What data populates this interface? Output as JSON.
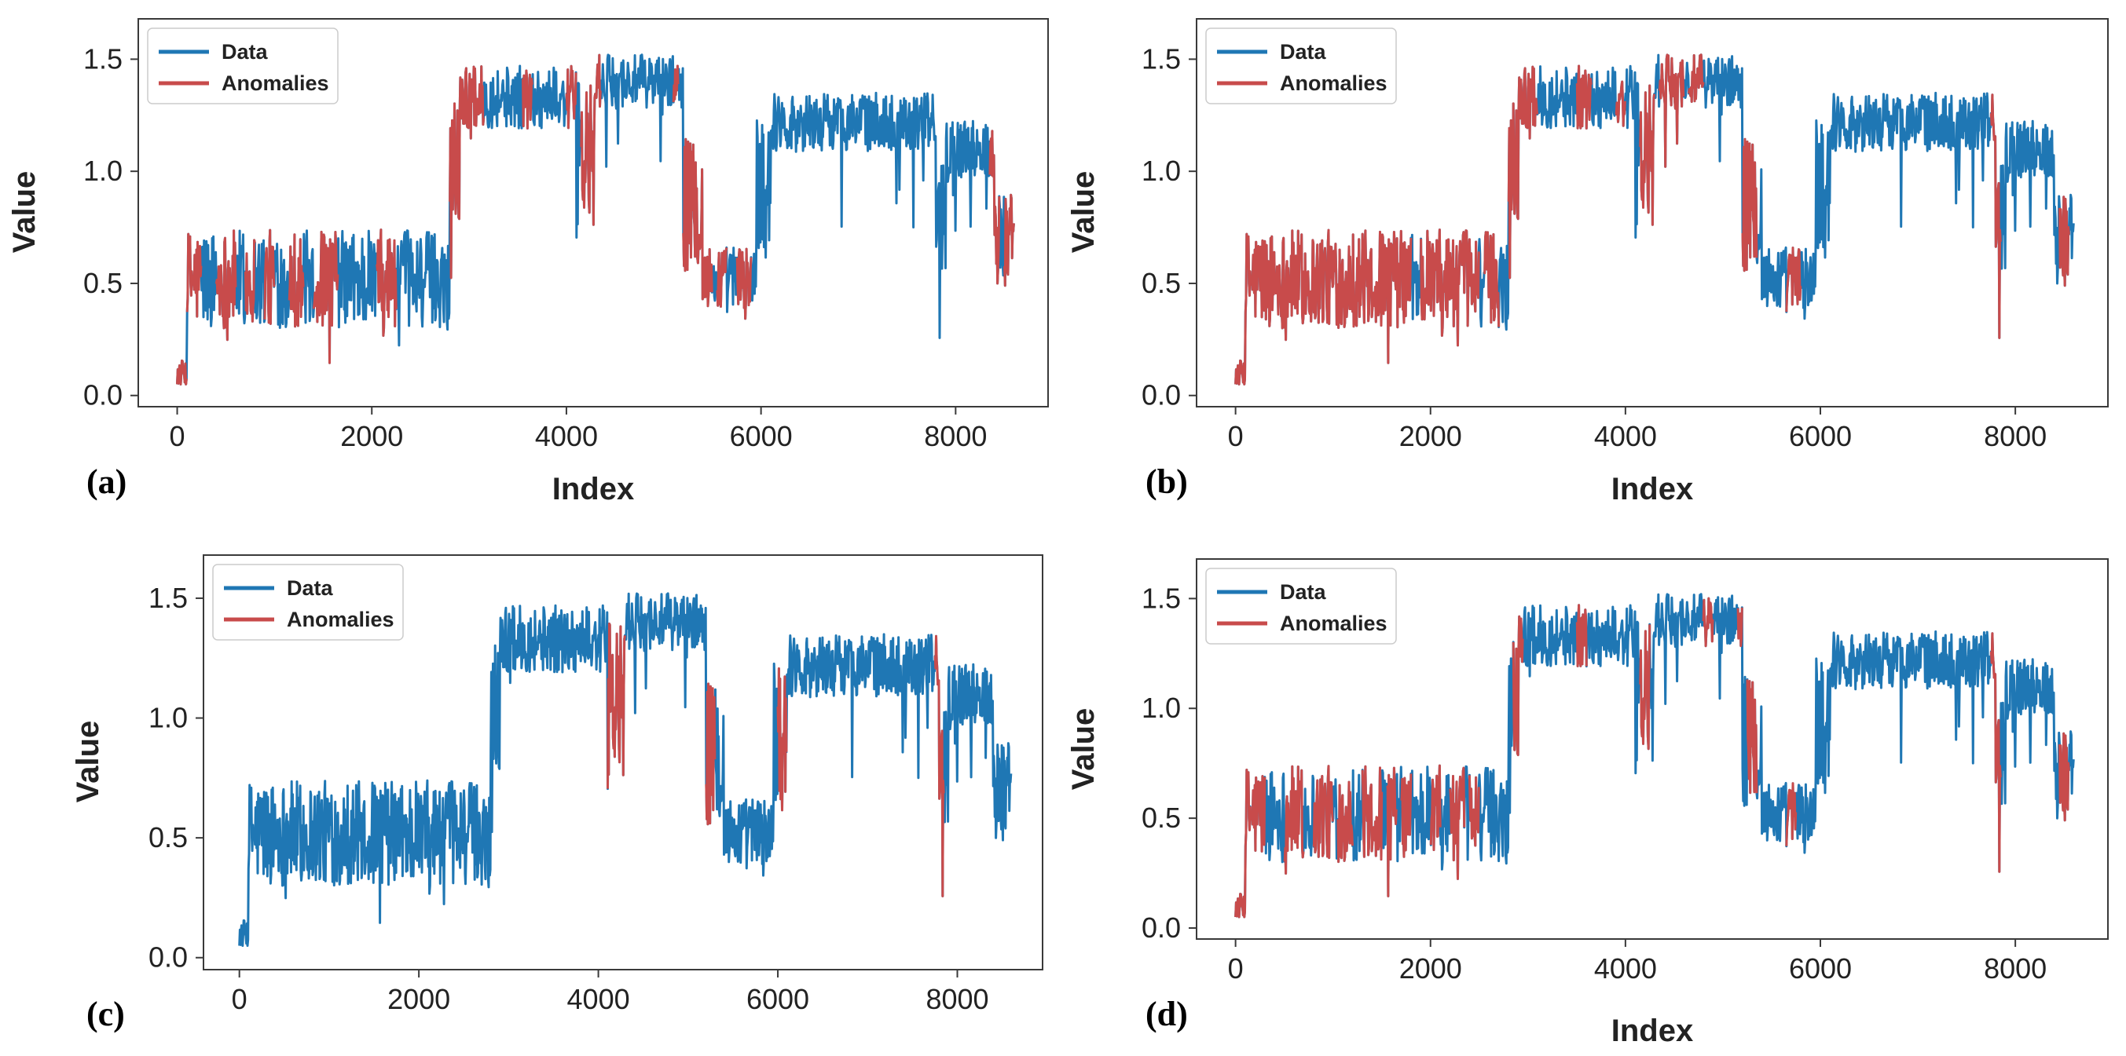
{
  "figure": {
    "colors": {
      "data": "#1f77b4",
      "anomaly": "#c84b4b",
      "frame": "#3a3a3a"
    },
    "legend_labels": {
      "data": "Data",
      "anomalies": "Anomalies"
    },
    "series_description": {
      "index_range": [
        0,
        8600
      ],
      "segments": [
        {
          "from": 0,
          "to": 100,
          "level": 0.1,
          "noise": 0.06
        },
        {
          "from": 100,
          "to": 2800,
          "level": 0.52,
          "noise": 0.22
        },
        {
          "from": 2800,
          "to": 2900,
          "level": 1.05,
          "noise": 0.3
        },
        {
          "from": 2900,
          "to": 4100,
          "level": 1.33,
          "noise": 0.14
        },
        {
          "from": 4100,
          "to": 4300,
          "level": 1.05,
          "noise": 0.35
        },
        {
          "from": 4300,
          "to": 5200,
          "level": 1.4,
          "noise": 0.12
        },
        {
          "from": 5200,
          "to": 5400,
          "level": 0.85,
          "noise": 0.3
        },
        {
          "from": 5400,
          "to": 5950,
          "level": 0.52,
          "noise": 0.15
        },
        {
          "from": 5950,
          "to": 6100,
          "level": 0.95,
          "noise": 0.35
        },
        {
          "from": 6100,
          "to": 7800,
          "level": 1.22,
          "noise": 0.13
        },
        {
          "from": 7800,
          "to": 7900,
          "level": 0.8,
          "noise": 0.25
        },
        {
          "from": 7900,
          "to": 8400,
          "level": 1.1,
          "noise": 0.13
        },
        {
          "from": 8400,
          "to": 8600,
          "level": 0.7,
          "noise": 0.22
        }
      ]
    }
  },
  "chart_data": [
    {
      "type": "line",
      "panel": "(a)",
      "title": "",
      "xlabel": "Index",
      "ylabel": "Value",
      "xlim": [
        -400,
        8950
      ],
      "ylim": [
        -0.05,
        1.68
      ],
      "xticks": [
        0,
        2000,
        4000,
        6000,
        8000
      ],
      "yticks": [
        0.0,
        0.5,
        1.0,
        1.5
      ],
      "ytick_labels": [
        "0.0",
        "0.5",
        "1.0",
        "1.5"
      ],
      "legend": [
        "Data",
        "Anomalies"
      ],
      "legend_position": "top-left",
      "series": [
        {
          "name": "Data",
          "color": "#1f77b4",
          "x_range": [
            0,
            8600
          ]
        },
        {
          "name": "Anomalies",
          "color": "#c84b4b",
          "ranges": [
            [
              0,
              100
            ],
            [
              100,
              250
            ],
            [
              400,
              600
            ],
            [
              700,
              800
            ],
            [
              900,
              1000
            ],
            [
              1150,
              1300
            ],
            [
              1400,
              1650
            ],
            [
              2050,
              2250
            ],
            [
              2800,
              3150
            ],
            [
              3550,
              3650
            ],
            [
              4000,
              4100
            ],
            [
              4150,
              4350
            ],
            [
              5100,
              5150
            ],
            [
              5200,
              5500
            ],
            [
              5550,
              5650
            ],
            [
              5750,
              5900
            ],
            [
              8350,
              8450
            ],
            [
              8500,
              8600
            ]
          ]
        }
      ]
    },
    {
      "type": "line",
      "panel": "(b)",
      "title": "",
      "xlabel": "Index",
      "ylabel": "Value",
      "xlim": [
        -400,
        8950
      ],
      "ylim": [
        -0.05,
        1.68
      ],
      "xticks": [
        0,
        2000,
        4000,
        6000,
        8000
      ],
      "yticks": [
        0.0,
        0.5,
        1.0,
        1.5
      ],
      "ytick_labels": [
        "0.0",
        "0.5",
        "1.0",
        "1.5"
      ],
      "legend": [
        "Data",
        "Anomalies"
      ],
      "legend_position": "top-left",
      "series": [
        {
          "name": "Data",
          "color": "#1f77b4",
          "x_range": [
            0,
            8600
          ]
        },
        {
          "name": "Anomalies",
          "color": "#c84b4b",
          "ranges": [
            [
              0,
              1800
            ],
            [
              1900,
              2500
            ],
            [
              2550,
              2700
            ],
            [
              2800,
              3100
            ],
            [
              3500,
              3650
            ],
            [
              3900,
              4000
            ],
            [
              4150,
              4300
            ],
            [
              4350,
              4600
            ],
            [
              4650,
              4800
            ],
            [
              5200,
              5350
            ],
            [
              5650,
              5800
            ],
            [
              7750,
              7850
            ],
            [
              8450,
              8550
            ]
          ]
        }
      ]
    },
    {
      "type": "line",
      "panel": "(c)",
      "title": "",
      "xlabel": "",
      "ylabel": "Value",
      "xlim": [
        -400,
        8950
      ],
      "ylim": [
        -0.05,
        1.68
      ],
      "xticks": [
        0,
        2000,
        4000,
        6000,
        8000
      ],
      "yticks": [
        0.0,
        0.5,
        1.0,
        1.5
      ],
      "ytick_labels": [
        "0.0",
        "0.5",
        "1.0",
        "1.5"
      ],
      "legend": [
        "Data",
        "Anomalies"
      ],
      "legend_position": "top-left",
      "series": [
        {
          "name": "Data",
          "color": "#1f77b4",
          "x_range": [
            0,
            8600
          ]
        },
        {
          "name": "Anomalies",
          "color": "#c84b4b",
          "ranges": [
            [
              4100,
              4300
            ],
            [
              5200,
              5300
            ],
            [
              6000,
              6100
            ],
            [
              7750,
              7850
            ]
          ]
        }
      ]
    },
    {
      "type": "line",
      "panel": "(d)",
      "title": "",
      "xlabel": "Index",
      "ylabel": "Value",
      "xlim": [
        -400,
        8950
      ],
      "ylim": [
        -0.05,
        1.68
      ],
      "xticks": [
        0,
        2000,
        4000,
        6000,
        8000
      ],
      "yticks": [
        0.0,
        0.5,
        1.0,
        1.5
      ],
      "ytick_labels": [
        "0.0",
        "0.5",
        "1.0",
        "1.5"
      ],
      "legend": [
        "Data",
        "Anomalies"
      ],
      "legend_position": "top-left",
      "series": [
        {
          "name": "Data",
          "color": "#1f77b4",
          "x_range": [
            0,
            8600
          ]
        },
        {
          "name": "Anomalies",
          "color": "#c84b4b",
          "ranges": [
            [
              0,
              150
            ],
            [
              150,
              300
            ],
            [
              500,
              700
            ],
            [
              800,
              1000
            ],
            [
              1050,
              1200
            ],
            [
              1300,
              1500
            ],
            [
              1550,
              1650
            ],
            [
              1700,
              1800
            ],
            [
              2000,
              2100
            ],
            [
              2200,
              2350
            ],
            [
              2400,
              2500
            ],
            [
              2850,
              2950
            ],
            [
              3500,
              3600
            ],
            [
              4150,
              4250
            ],
            [
              4800,
              4900
            ],
            [
              5150,
              5200
            ],
            [
              5250,
              5350
            ],
            [
              5650,
              5750
            ],
            [
              7750,
              7850
            ],
            [
              8450,
              8550
            ]
          ]
        }
      ]
    }
  ]
}
